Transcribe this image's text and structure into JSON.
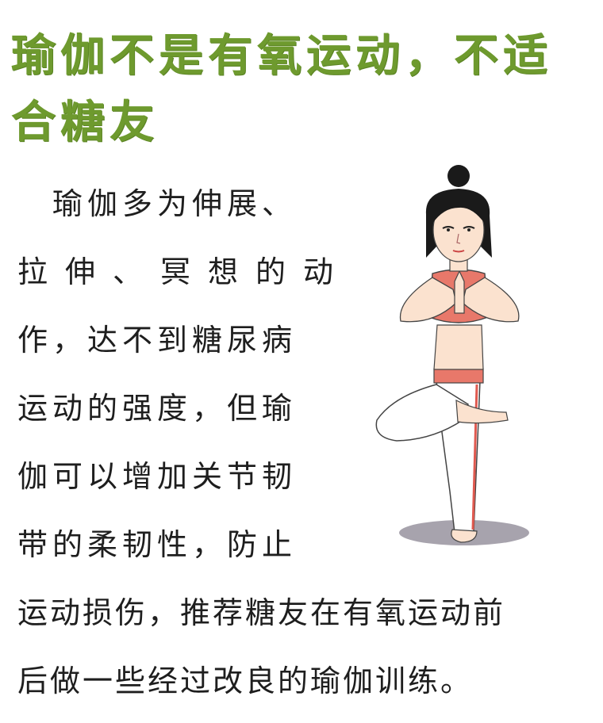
{
  "title": "瑜伽不是有氧运动，不适合糖友",
  "body_lines": [
    "　瑜伽多为伸展、",
    "拉伸、冥想的动",
    "作，达不到糖尿病",
    "运动的强度，但瑜",
    "伽可以增加关节韧",
    "带的柔韧性，防止",
    "运动损伤，推荐糖友在有氧运动前",
    "后做一些经过改良的瑜伽训练。"
  ],
  "colors": {
    "title": "#6e9a2e",
    "text": "#1e1e1e",
    "top": "#e8786a",
    "pants": "#ffffff",
    "pants_stripe": "#e05a50",
    "shadow": "#a7a3ad",
    "hair": "#1a1a1a",
    "skin": "#fbe2cf"
  },
  "illustration_icon": "woman-yoga-tree-pose-icon"
}
